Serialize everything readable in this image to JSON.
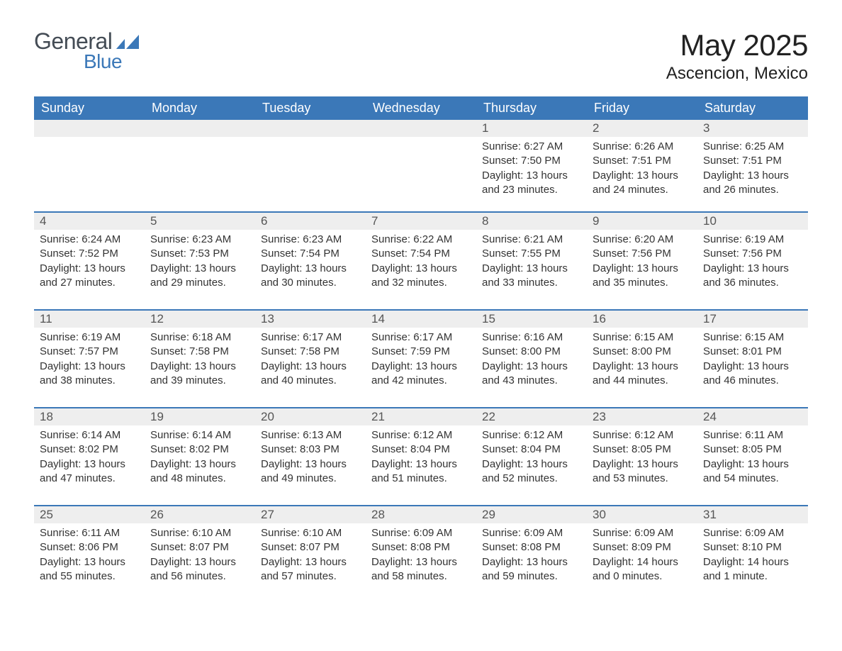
{
  "brand": {
    "line1": "General",
    "line2": "Blue"
  },
  "title": "May 2025",
  "location": "Ascencion, Mexico",
  "colors": {
    "header_bg": "#3b78b8",
    "header_text": "#ffffff",
    "daynum_bg": "#eeeeee",
    "row_divider": "#3b78b8",
    "body_text": "#333333",
    "logo_general": "#444c55",
    "logo_blue": "#3b78b8"
  },
  "weekdays": [
    "Sunday",
    "Monday",
    "Tuesday",
    "Wednesday",
    "Thursday",
    "Friday",
    "Saturday"
  ],
  "weeks": [
    [
      null,
      null,
      null,
      null,
      {
        "n": "1",
        "sunrise": "6:27 AM",
        "sunset": "7:50 PM",
        "daylight": "13 hours and 23 minutes."
      },
      {
        "n": "2",
        "sunrise": "6:26 AM",
        "sunset": "7:51 PM",
        "daylight": "13 hours and 24 minutes."
      },
      {
        "n": "3",
        "sunrise": "6:25 AM",
        "sunset": "7:51 PM",
        "daylight": "13 hours and 26 minutes."
      }
    ],
    [
      {
        "n": "4",
        "sunrise": "6:24 AM",
        "sunset": "7:52 PM",
        "daylight": "13 hours and 27 minutes."
      },
      {
        "n": "5",
        "sunrise": "6:23 AM",
        "sunset": "7:53 PM",
        "daylight": "13 hours and 29 minutes."
      },
      {
        "n": "6",
        "sunrise": "6:23 AM",
        "sunset": "7:54 PM",
        "daylight": "13 hours and 30 minutes."
      },
      {
        "n": "7",
        "sunrise": "6:22 AM",
        "sunset": "7:54 PM",
        "daylight": "13 hours and 32 minutes."
      },
      {
        "n": "8",
        "sunrise": "6:21 AM",
        "sunset": "7:55 PM",
        "daylight": "13 hours and 33 minutes."
      },
      {
        "n": "9",
        "sunrise": "6:20 AM",
        "sunset": "7:56 PM",
        "daylight": "13 hours and 35 minutes."
      },
      {
        "n": "10",
        "sunrise": "6:19 AM",
        "sunset": "7:56 PM",
        "daylight": "13 hours and 36 minutes."
      }
    ],
    [
      {
        "n": "11",
        "sunrise": "6:19 AM",
        "sunset": "7:57 PM",
        "daylight": "13 hours and 38 minutes."
      },
      {
        "n": "12",
        "sunrise": "6:18 AM",
        "sunset": "7:58 PM",
        "daylight": "13 hours and 39 minutes."
      },
      {
        "n": "13",
        "sunrise": "6:17 AM",
        "sunset": "7:58 PM",
        "daylight": "13 hours and 40 minutes."
      },
      {
        "n": "14",
        "sunrise": "6:17 AM",
        "sunset": "7:59 PM",
        "daylight": "13 hours and 42 minutes."
      },
      {
        "n": "15",
        "sunrise": "6:16 AM",
        "sunset": "8:00 PM",
        "daylight": "13 hours and 43 minutes."
      },
      {
        "n": "16",
        "sunrise": "6:15 AM",
        "sunset": "8:00 PM",
        "daylight": "13 hours and 44 minutes."
      },
      {
        "n": "17",
        "sunrise": "6:15 AM",
        "sunset": "8:01 PM",
        "daylight": "13 hours and 46 minutes."
      }
    ],
    [
      {
        "n": "18",
        "sunrise": "6:14 AM",
        "sunset": "8:02 PM",
        "daylight": "13 hours and 47 minutes."
      },
      {
        "n": "19",
        "sunrise": "6:14 AM",
        "sunset": "8:02 PM",
        "daylight": "13 hours and 48 minutes."
      },
      {
        "n": "20",
        "sunrise": "6:13 AM",
        "sunset": "8:03 PM",
        "daylight": "13 hours and 49 minutes."
      },
      {
        "n": "21",
        "sunrise": "6:12 AM",
        "sunset": "8:04 PM",
        "daylight": "13 hours and 51 minutes."
      },
      {
        "n": "22",
        "sunrise": "6:12 AM",
        "sunset": "8:04 PM",
        "daylight": "13 hours and 52 minutes."
      },
      {
        "n": "23",
        "sunrise": "6:12 AM",
        "sunset": "8:05 PM",
        "daylight": "13 hours and 53 minutes."
      },
      {
        "n": "24",
        "sunrise": "6:11 AM",
        "sunset": "8:05 PM",
        "daylight": "13 hours and 54 minutes."
      }
    ],
    [
      {
        "n": "25",
        "sunrise": "6:11 AM",
        "sunset": "8:06 PM",
        "daylight": "13 hours and 55 minutes."
      },
      {
        "n": "26",
        "sunrise": "6:10 AM",
        "sunset": "8:07 PM",
        "daylight": "13 hours and 56 minutes."
      },
      {
        "n": "27",
        "sunrise": "6:10 AM",
        "sunset": "8:07 PM",
        "daylight": "13 hours and 57 minutes."
      },
      {
        "n": "28",
        "sunrise": "6:09 AM",
        "sunset": "8:08 PM",
        "daylight": "13 hours and 58 minutes."
      },
      {
        "n": "29",
        "sunrise": "6:09 AM",
        "sunset": "8:08 PM",
        "daylight": "13 hours and 59 minutes."
      },
      {
        "n": "30",
        "sunrise": "6:09 AM",
        "sunset": "8:09 PM",
        "daylight": "14 hours and 0 minutes."
      },
      {
        "n": "31",
        "sunrise": "6:09 AM",
        "sunset": "8:10 PM",
        "daylight": "14 hours and 1 minute."
      }
    ]
  ],
  "labels": {
    "sunrise": "Sunrise: ",
    "sunset": "Sunset: ",
    "daylight": "Daylight: "
  }
}
